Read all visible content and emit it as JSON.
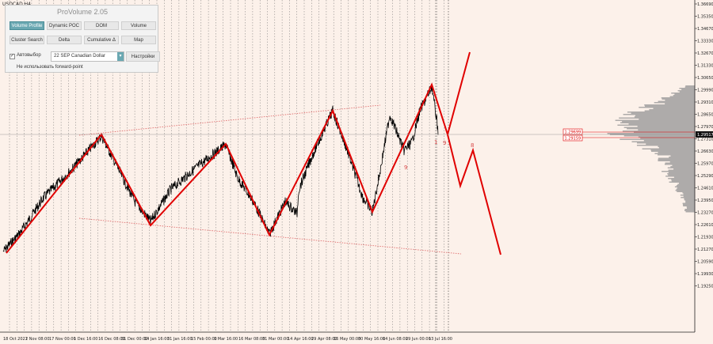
{
  "symbol_label": "USDCAD,H4",
  "panel": {
    "title": "ProVolume 2.05",
    "buttons": [
      {
        "id": "volume-profile",
        "label": "Volume Profile",
        "active": true
      },
      {
        "id": "dynamic-poc",
        "label": "Dynamic POC",
        "active": false
      },
      {
        "id": "dom",
        "label": "DOM",
        "active": false
      },
      {
        "id": "volume",
        "label": "Volume",
        "active": false
      },
      {
        "id": "cluster-search",
        "label": "Cluster Search",
        "active": false
      },
      {
        "id": "delta",
        "label": "Delta",
        "active": false
      },
      {
        "id": "cumulative-delta",
        "label": "Cumulative Δ",
        "active": false
      },
      {
        "id": "map",
        "label": "Map",
        "active": false
      }
    ],
    "autoselect_label": "Автовыбор",
    "autoselect_checked": true,
    "instrument_value": "22 SEP Canadian Dollar",
    "settings_label": "Настройки",
    "forward_label": "Не использовать forward-point"
  },
  "price_axis": [
    "1.36690",
    "1.35350",
    "1.34670",
    "1.33330",
    "1.32670",
    "1.31330",
    "1.30650",
    "1.29990",
    "1.29310",
    "1.28650",
    "1.27970",
    "1.27310",
    "1.26630",
    "1.25970",
    "1.25290",
    "1.24610",
    "1.23950",
    "1.23270",
    "1.22610",
    "1.21930",
    "1.21270",
    "1.20590",
    "1.19930",
    "1.19250"
  ],
  "current_price": "1.29517",
  "volume_labels": [
    "1.29699",
    "1.29159"
  ],
  "time_axis": [
    "18 Oct 2021",
    "2 Nov 08:00",
    "17 Nov 00:00",
    "1 Dec 16:00",
    "16 Dec 08:00",
    "31 Dec 00:00",
    "14 Jan 16:00",
    "31 Jan 16:00",
    "15 Feb 00:00",
    "1 Mar 16:00",
    "16 Mar 08:00",
    "31 Mar 00:00",
    "14 Apr 16:00",
    "29 Apr 08:00",
    "16 May 00:00",
    "30 May 16:00",
    "14 Jun 08:00",
    "29 Jun 00:00",
    "13 Jul 16:00"
  ],
  "wave_labels": [
    "9",
    "9",
    "8",
    "1"
  ],
  "colors": {
    "background": "#fcf1ea",
    "price_line": "#000000",
    "wave": "#e00000",
    "channel": "#e07070",
    "grid": "#555555",
    "volume": "#9a9a9a",
    "panel_active": "#6aa8b2"
  }
}
